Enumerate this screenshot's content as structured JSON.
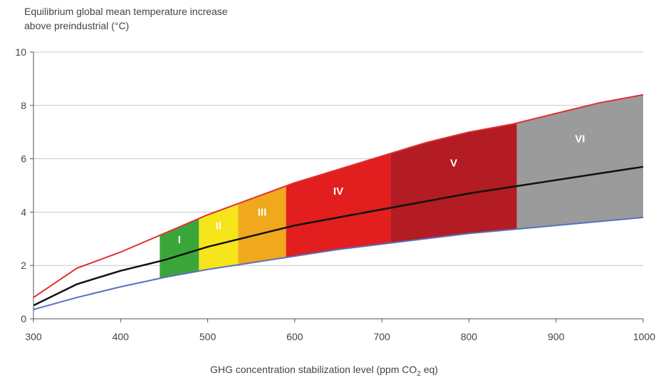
{
  "chart_data": {
    "type": "area",
    "ylabel_lines": [
      "Equilibrium global mean temperature increase",
      "above preindustrial (°C)"
    ],
    "xlabel": "GHG concentration stabilization level (ppm CO",
    "xlabel_sub": "2",
    "xlabel_end": " eq)",
    "xlim": [
      300,
      1000
    ],
    "ylim": [
      0,
      10
    ],
    "xticks": [
      300,
      400,
      500,
      600,
      700,
      800,
      900,
      1000
    ],
    "yticks": [
      0,
      2,
      4,
      6,
      8,
      10
    ],
    "grid": "horizontal",
    "series": [
      {
        "role": "upper",
        "color": "#e03030",
        "x": [
          300,
          350,
          400,
          450,
          500,
          550,
          600,
          650,
          700,
          750,
          800,
          850,
          900,
          950,
          1000
        ],
        "y": [
          0.8,
          1.9,
          2.5,
          3.2,
          3.9,
          4.5,
          5.1,
          5.6,
          6.1,
          6.6,
          7.0,
          7.3,
          7.7,
          8.1,
          8.4
        ]
      },
      {
        "role": "best_estimate",
        "color": "#111111",
        "x": [
          300,
          350,
          400,
          450,
          500,
          550,
          600,
          650,
          700,
          750,
          800,
          850,
          900,
          950,
          1000
        ],
        "y": [
          0.5,
          1.3,
          1.8,
          2.2,
          2.7,
          3.1,
          3.5,
          3.8,
          4.1,
          4.4,
          4.7,
          4.95,
          5.2,
          5.45,
          5.7
        ]
      },
      {
        "role": "lower",
        "color": "#5a6fc0",
        "x": [
          300,
          350,
          400,
          450,
          500,
          550,
          600,
          650,
          700,
          750,
          800,
          850,
          900,
          950,
          1000
        ],
        "y": [
          0.35,
          0.8,
          1.2,
          1.55,
          1.85,
          2.1,
          2.35,
          2.6,
          2.8,
          3.0,
          3.2,
          3.35,
          3.5,
          3.65,
          3.8
        ]
      }
    ],
    "categories": [
      {
        "label": "I",
        "x_start": 445,
        "x_end": 490,
        "color": "#3aa63a"
      },
      {
        "label": "II",
        "x_start": 490,
        "x_end": 535,
        "color": "#f5e51a"
      },
      {
        "label": "III",
        "x_start": 535,
        "x_end": 590,
        "color": "#f0a81c"
      },
      {
        "label": "IV",
        "x_start": 590,
        "x_end": 710,
        "color": "#e21e1e"
      },
      {
        "label": "V",
        "x_start": 710,
        "x_end": 855,
        "color": "#b21c22"
      },
      {
        "label": "VI",
        "x_start": 855,
        "x_end": 1000,
        "color": "#9b9b9b"
      }
    ]
  }
}
